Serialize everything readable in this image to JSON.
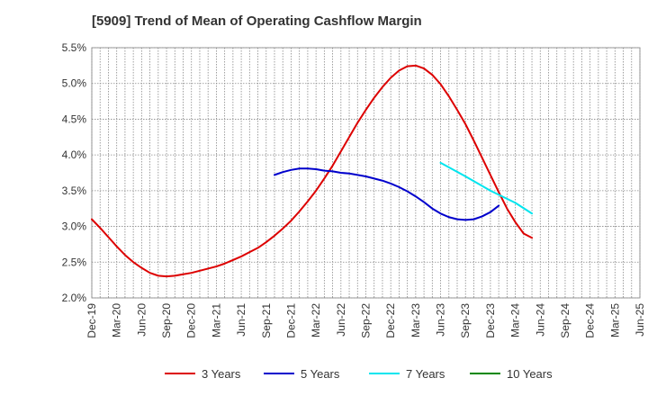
{
  "title": "[5909]  Trend of Mean of Operating Cashflow Margin",
  "chart_data": {
    "type": "line",
    "title": "[5909]  Trend of Mean of Operating Cashflow Margin",
    "xlabel": "",
    "ylabel": "",
    "ylim": [
      2.0,
      5.5
    ],
    "grid": true,
    "legend_position": "bottom",
    "x_ticks": [
      "Dec-19",
      "Mar-20",
      "Jun-20",
      "Sep-20",
      "Dec-20",
      "Mar-21",
      "Jun-21",
      "Sep-21",
      "Dec-21",
      "Mar-22",
      "Jun-22",
      "Sep-22",
      "Dec-22",
      "Mar-23",
      "Jun-23",
      "Sep-23",
      "Dec-23",
      "Mar-24",
      "Jun-24",
      "Sep-24",
      "Dec-24",
      "Mar-25",
      "Jun-25"
    ],
    "y_ticks": [
      "2.0%",
      "2.5%",
      "3.0%",
      "3.5%",
      "4.0%",
      "4.5%",
      "5.0%",
      "5.5%"
    ],
    "series": [
      {
        "name": "3 Years",
        "color": "#dd0000",
        "points": [
          {
            "x": "Dec-19",
            "y": 3.1
          },
          {
            "x": "Jan-20",
            "y": 2.98
          },
          {
            "x": "Feb-20",
            "y": 2.85
          },
          {
            "x": "Mar-20",
            "y": 2.72
          },
          {
            "x": "Apr-20",
            "y": 2.6
          },
          {
            "x": "May-20",
            "y": 2.5
          },
          {
            "x": "Jun-20",
            "y": 2.42
          },
          {
            "x": "Jul-20",
            "y": 2.35
          },
          {
            "x": "Aug-20",
            "y": 2.31
          },
          {
            "x": "Sep-20",
            "y": 2.3
          },
          {
            "x": "Oct-20",
            "y": 2.31
          },
          {
            "x": "Nov-20",
            "y": 2.33
          },
          {
            "x": "Dec-20",
            "y": 2.35
          },
          {
            "x": "Jan-21",
            "y": 2.38
          },
          {
            "x": "Feb-21",
            "y": 2.41
          },
          {
            "x": "Mar-21",
            "y": 2.44
          },
          {
            "x": "Apr-21",
            "y": 2.48
          },
          {
            "x": "May-21",
            "y": 2.53
          },
          {
            "x": "Jun-21",
            "y": 2.58
          },
          {
            "x": "Jul-21",
            "y": 2.64
          },
          {
            "x": "Aug-21",
            "y": 2.7
          },
          {
            "x": "Sep-21",
            "y": 2.78
          },
          {
            "x": "Oct-21",
            "y": 2.87
          },
          {
            "x": "Nov-21",
            "y": 2.97
          },
          {
            "x": "Dec-21",
            "y": 3.08
          },
          {
            "x": "Jan-22",
            "y": 3.21
          },
          {
            "x": "Feb-22",
            "y": 3.35
          },
          {
            "x": "Mar-22",
            "y": 3.5
          },
          {
            "x": "Apr-22",
            "y": 3.67
          },
          {
            "x": "May-22",
            "y": 3.85
          },
          {
            "x": "Jun-22",
            "y": 4.05
          },
          {
            "x": "Jul-22",
            "y": 4.25
          },
          {
            "x": "Aug-22",
            "y": 4.45
          },
          {
            "x": "Sep-22",
            "y": 4.63
          },
          {
            "x": "Oct-22",
            "y": 4.8
          },
          {
            "x": "Nov-22",
            "y": 4.95
          },
          {
            "x": "Dec-22",
            "y": 5.08
          },
          {
            "x": "Jan-23",
            "y": 5.18
          },
          {
            "x": "Feb-23",
            "y": 5.24
          },
          {
            "x": "Mar-23",
            "y": 5.25
          },
          {
            "x": "Apr-23",
            "y": 5.21
          },
          {
            "x": "May-23",
            "y": 5.12
          },
          {
            "x": "Jun-23",
            "y": 4.99
          },
          {
            "x": "Jul-23",
            "y": 4.82
          },
          {
            "x": "Aug-23",
            "y": 4.63
          },
          {
            "x": "Sep-23",
            "y": 4.43
          },
          {
            "x": "Oct-23",
            "y": 4.2
          },
          {
            "x": "Nov-23",
            "y": 3.96
          },
          {
            "x": "Dec-23",
            "y": 3.72
          },
          {
            "x": "Jan-24",
            "y": 3.48
          },
          {
            "x": "Feb-24",
            "y": 3.25
          },
          {
            "x": "Mar-24",
            "y": 3.06
          },
          {
            "x": "Apr-24",
            "y": 2.9
          },
          {
            "x": "May-24",
            "y": 2.84
          }
        ]
      },
      {
        "name": "5 Years",
        "color": "#0000cc",
        "points": [
          {
            "x": "Oct-21",
            "y": 3.72
          },
          {
            "x": "Nov-21",
            "y": 3.76
          },
          {
            "x": "Dec-21",
            "y": 3.79
          },
          {
            "x": "Jan-22",
            "y": 3.81
          },
          {
            "x": "Feb-22",
            "y": 3.81
          },
          {
            "x": "Mar-22",
            "y": 3.8
          },
          {
            "x": "Apr-22",
            "y": 3.78
          },
          {
            "x": "May-22",
            "y": 3.77
          },
          {
            "x": "Jun-22",
            "y": 3.75
          },
          {
            "x": "Jul-22",
            "y": 3.74
          },
          {
            "x": "Aug-22",
            "y": 3.72
          },
          {
            "x": "Sep-22",
            "y": 3.7
          },
          {
            "x": "Oct-22",
            "y": 3.67
          },
          {
            "x": "Nov-22",
            "y": 3.64
          },
          {
            "x": "Dec-22",
            "y": 3.6
          },
          {
            "x": "Jan-23",
            "y": 3.55
          },
          {
            "x": "Feb-23",
            "y": 3.49
          },
          {
            "x": "Mar-23",
            "y": 3.42
          },
          {
            "x": "Apr-23",
            "y": 3.34
          },
          {
            "x": "May-23",
            "y": 3.25
          },
          {
            "x": "Jun-23",
            "y": 3.18
          },
          {
            "x": "Jul-23",
            "y": 3.13
          },
          {
            "x": "Aug-23",
            "y": 3.1
          },
          {
            "x": "Sep-23",
            "y": 3.09
          },
          {
            "x": "Oct-23",
            "y": 3.1
          },
          {
            "x": "Nov-23",
            "y": 3.14
          },
          {
            "x": "Dec-23",
            "y": 3.2
          },
          {
            "x": "Jan-24",
            "y": 3.29
          }
        ]
      },
      {
        "name": "7 Years",
        "color": "#00e5ee",
        "points": [
          {
            "x": "Jun-23",
            "y": 3.89
          },
          {
            "x": "Sep-23",
            "y": 3.7
          },
          {
            "x": "Dec-23",
            "y": 3.5
          },
          {
            "x": "Mar-24",
            "y": 3.33
          },
          {
            "x": "May-24",
            "y": 3.18
          }
        ]
      },
      {
        "name": "10 Years",
        "color": "#008800",
        "points": []
      }
    ]
  }
}
